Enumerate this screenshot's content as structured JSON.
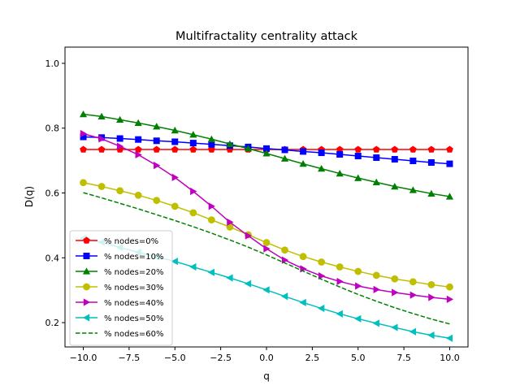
{
  "chart_data": {
    "type": "line",
    "title": "Multifractality centrality attack",
    "xlabel": "q",
    "ylabel": "D(q)",
    "xlim": [
      -11,
      11
    ],
    "ylim": [
      0.125,
      1.05
    ],
    "xticks": [
      -10.0,
      -7.5,
      -5.0,
      -2.5,
      0.0,
      2.5,
      5.0,
      7.5,
      10.0
    ],
    "xtick_labels": [
      "−10.0",
      "−7.5",
      "−5.0",
      "−2.5",
      "0.0",
      "2.5",
      "5.0",
      "7.5",
      "10.0"
    ],
    "yticks": [
      0.2,
      0.4,
      0.6,
      0.8,
      1.0
    ],
    "ytick_labels": [
      "0.2",
      "0.4",
      "0.6",
      "0.8",
      "1.0"
    ],
    "grid": false,
    "legend_position": "lower-left",
    "x": [
      -10,
      -9,
      -8,
      -7,
      -6,
      -5,
      -4,
      -3,
      -2,
      -1,
      0,
      1,
      2,
      3,
      4,
      5,
      6,
      7,
      8,
      9,
      10
    ],
    "series": [
      {
        "name": "% nodes=0%",
        "color": "#ff0000",
        "marker": "pentagon",
        "dash": "solid",
        "values": [
          0.734,
          0.734,
          0.734,
          0.734,
          0.734,
          0.734,
          0.734,
          0.734,
          0.734,
          0.734,
          0.734,
          0.734,
          0.734,
          0.734,
          0.734,
          0.734,
          0.734,
          0.734,
          0.734,
          0.734,
          0.734
        ]
      },
      {
        "name": "% nodes=10%",
        "color": "#0000ff",
        "marker": "square",
        "dash": "solid",
        "values": [
          0.773,
          0.771,
          0.768,
          0.765,
          0.761,
          0.758,
          0.754,
          0.75,
          0.746,
          0.742,
          0.737,
          0.733,
          0.728,
          0.724,
          0.719,
          0.714,
          0.709,
          0.704,
          0.699,
          0.694,
          0.69
        ]
      },
      {
        "name": "% nodes=20%",
        "color": "#008000",
        "marker": "triangle-up",
        "dash": "solid",
        "values": [
          0.843,
          0.836,
          0.826,
          0.816,
          0.805,
          0.793,
          0.78,
          0.766,
          0.751,
          0.737,
          0.722,
          0.706,
          0.69,
          0.675,
          0.66,
          0.646,
          0.633,
          0.62,
          0.609,
          0.598,
          0.589
        ]
      },
      {
        "name": "% nodes=30%",
        "color": "#bfbf00",
        "marker": "circle",
        "dash": "solid",
        "values": [
          0.632,
          0.62,
          0.607,
          0.593,
          0.577,
          0.559,
          0.539,
          0.517,
          0.495,
          0.471,
          0.447,
          0.424,
          0.404,
          0.387,
          0.372,
          0.358,
          0.346,
          0.335,
          0.326,
          0.317,
          0.31
        ]
      },
      {
        "name": "% nodes=40%",
        "color": "#bf00bf",
        "marker": "triangle-right",
        "dash": "solid",
        "values": [
          0.783,
          0.767,
          0.744,
          0.718,
          0.685,
          0.648,
          0.605,
          0.559,
          0.51,
          0.468,
          0.428,
          0.393,
          0.366,
          0.344,
          0.327,
          0.313,
          0.302,
          0.293,
          0.285,
          0.278,
          0.272
        ]
      },
      {
        "name": "% nodes=50%",
        "color": "#00bfbf",
        "marker": "triangle-left",
        "dash": "solid",
        "values": [
          0.46,
          0.448,
          0.432,
          0.417,
          0.403,
          0.389,
          0.372,
          0.355,
          0.338,
          0.32,
          0.301,
          0.281,
          0.262,
          0.244,
          0.227,
          0.212,
          0.198,
          0.185,
          0.172,
          0.161,
          0.152
        ]
      },
      {
        "name": "% nodes=60%",
        "color": "#008000",
        "marker": "none",
        "dash": "dashed",
        "values": [
          0.601,
          0.585,
          0.568,
          0.551,
          0.533,
          0.515,
          0.496,
          0.476,
          0.455,
          0.433,
          0.409,
          0.384,
          0.359,
          0.334,
          0.31,
          0.287,
          0.266,
          0.246,
          0.228,
          0.211,
          0.196
        ]
      }
    ]
  }
}
